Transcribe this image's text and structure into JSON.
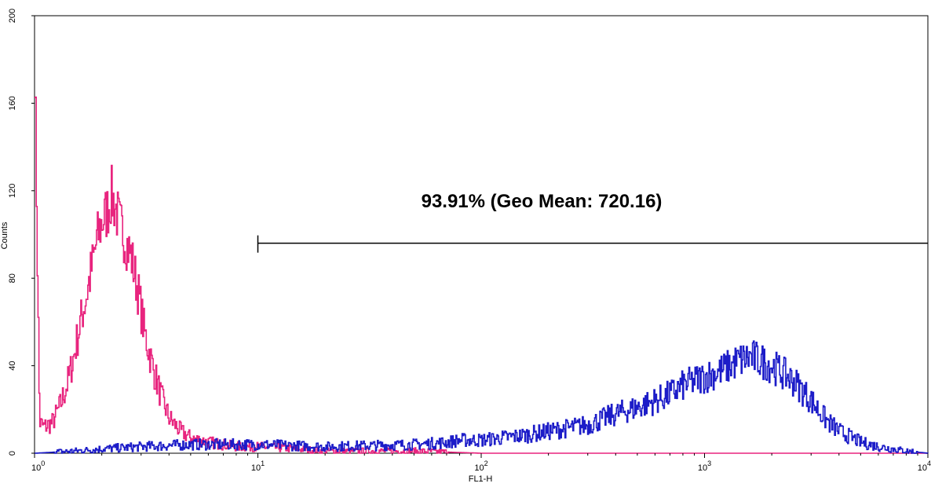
{
  "chart_data": {
    "type": "line",
    "title": "",
    "xlabel": "FL1-H",
    "ylabel": "Counts",
    "xscale": "log",
    "xlim": [
      1,
      10000
    ],
    "ylim": [
      0,
      200
    ],
    "grid": false,
    "x_tick_labels": [
      {
        "base": "10",
        "exp": "0"
      },
      {
        "base": "10",
        "exp": "1"
      },
      {
        "base": "10",
        "exp": "2"
      },
      {
        "base": "10",
        "exp": "3"
      },
      {
        "base": "10",
        "exp": "4"
      }
    ],
    "x_ticks": [
      1,
      10,
      100,
      1000,
      10000
    ],
    "y_ticks": [
      0,
      40,
      80,
      120,
      160,
      200
    ],
    "y_tick_labels": [
      "0",
      "40",
      "80",
      "120",
      "160",
      "200"
    ],
    "series": [
      {
        "color": "#e8247e",
        "x": [
          1.0,
          1.05,
          1.1,
          1.2,
          1.3,
          1.4,
          1.5,
          1.6,
          1.7,
          1.8,
          1.9,
          2.0,
          2.1,
          2.2,
          2.3,
          2.4,
          2.5,
          2.7,
          2.9,
          3.1,
          3.4,
          3.7,
          4.0,
          4.5,
          5.0,
          6.0,
          7.0,
          8.0,
          10.0,
          15.0,
          20.0,
          50.0,
          100.0,
          1000.0,
          10000.0
        ],
        "y": [
          180,
          14,
          12,
          14,
          22,
          32,
          45,
          60,
          72,
          85,
          98,
          106,
          110,
          118,
          112,
          104,
          100,
          90,
          74,
          55,
          38,
          25,
          16,
          10,
          7,
          5,
          4,
          3,
          3,
          2,
          1,
          1,
          0,
          0,
          0
        ]
      },
      {
        "color": "#1c1cc8",
        "x": [
          1.0,
          1.5,
          2.0,
          3.0,
          5.0,
          10.0,
          20.0,
          50.0,
          70.0,
          80.0,
          100.0,
          150.0,
          200.0,
          300.0,
          400.0,
          500.0,
          600.0,
          700.0,
          800.0,
          1000.0,
          1200.0,
          1400.0,
          1600.0,
          1800.0,
          2000.0,
          2500.0,
          3000.0,
          3500.0,
          4000.0,
          5000.0,
          6000.0,
          8000.0,
          10000.0
        ],
        "y": [
          0,
          1,
          2,
          3,
          4,
          4,
          3,
          4,
          5,
          6,
          6,
          8,
          10,
          13,
          18,
          21,
          24,
          27,
          31,
          35,
          38,
          42,
          44,
          42,
          40,
          33,
          24,
          15,
          10,
          5,
          3,
          1,
          0
        ]
      }
    ],
    "annotations": [
      {
        "text": "93.91% (Geo Mean: 720.16)",
        "marker_range": [
          10,
          10000
        ],
        "marker_y": 96
      }
    ]
  }
}
